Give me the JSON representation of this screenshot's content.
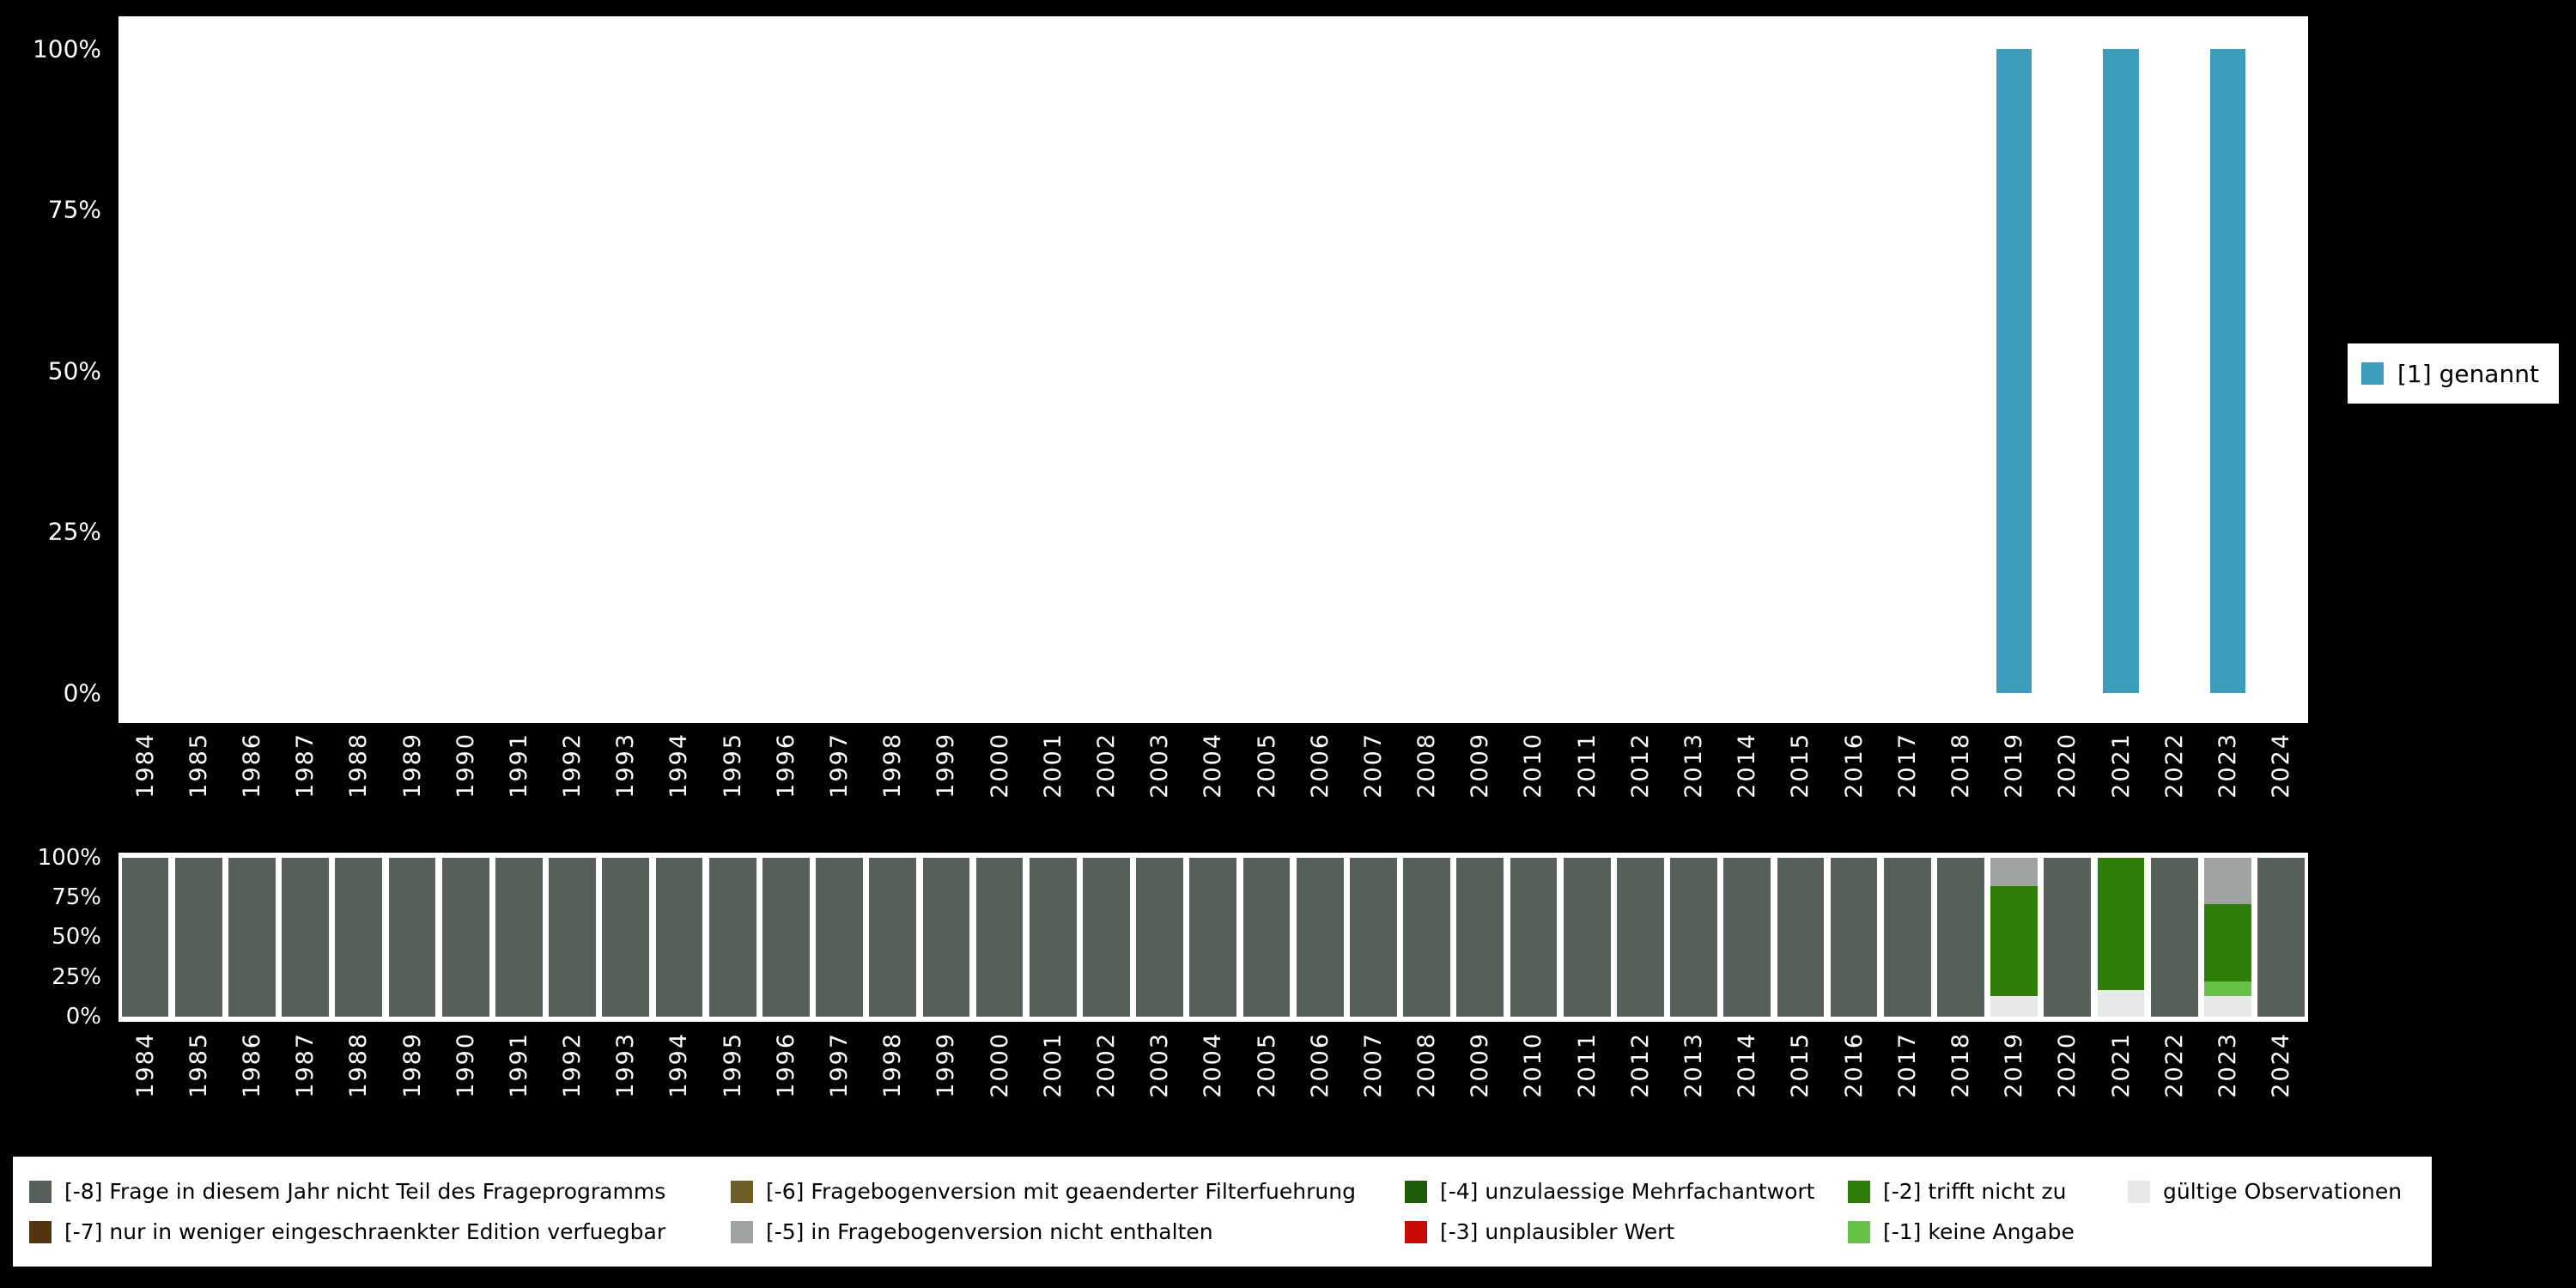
{
  "style": {
    "page_bg": "#000000",
    "plot_bg": "#ffffff",
    "axis_text_color": "#ffffff"
  },
  "chart_data": [
    {
      "type": "bar",
      "title": "",
      "categories": [
        "1984",
        "1985",
        "1986",
        "1987",
        "1988",
        "1989",
        "1990",
        "1991",
        "1992",
        "1993",
        "1994",
        "1995",
        "1996",
        "1997",
        "1998",
        "1999",
        "2000",
        "2001",
        "2002",
        "2003",
        "2004",
        "2005",
        "2006",
        "2007",
        "2008",
        "2009",
        "2010",
        "2011",
        "2012",
        "2013",
        "2014",
        "2015",
        "2016",
        "2017",
        "2018",
        "2019",
        "2020",
        "2021",
        "2022",
        "2023",
        "2024"
      ],
      "series": [
        {
          "name": "[1] genannt",
          "color": "#3d9dbc",
          "values": [
            0,
            0,
            0,
            0,
            0,
            0,
            0,
            0,
            0,
            0,
            0,
            0,
            0,
            0,
            0,
            0,
            0,
            0,
            0,
            0,
            0,
            0,
            0,
            0,
            0,
            0,
            0,
            0,
            0,
            0,
            0,
            0,
            0,
            0,
            0,
            100,
            0,
            100,
            0,
            100,
            0
          ]
        }
      ],
      "ylim": [
        0,
        100
      ],
      "yticks": [
        "100%",
        "75%",
        "50%",
        "25%",
        "0%"
      ],
      "grid": false,
      "legend": {
        "position": "right",
        "entries": [
          {
            "label": "[1] genannt",
            "color": "#3d9dbc"
          }
        ]
      }
    },
    {
      "type": "stacked-bar",
      "title": "",
      "categories": [
        "1984",
        "1985",
        "1986",
        "1987",
        "1988",
        "1989",
        "1990",
        "1991",
        "1992",
        "1993",
        "1994",
        "1995",
        "1996",
        "1997",
        "1998",
        "1999",
        "2000",
        "2001",
        "2002",
        "2003",
        "2004",
        "2005",
        "2006",
        "2007",
        "2008",
        "2009",
        "2010",
        "2011",
        "2012",
        "2013",
        "2014",
        "2015",
        "2016",
        "2017",
        "2018",
        "2019",
        "2020",
        "2021",
        "2022",
        "2023",
        "2024"
      ],
      "ylim": [
        0,
        100
      ],
      "yticks": [
        "100%",
        "75%",
        "50%",
        "25%",
        "0%"
      ],
      "grid": false,
      "colors": {
        "-8": "#565f58",
        "-7": "#53320f",
        "-6": "#6d5e26",
        "-5": "#9ea3a1",
        "-4": "#1f5c08",
        "-3": "#c70b05",
        "-2": "#2e7d06",
        "-1": "#64c244",
        "valid": "#e6e9e7"
      },
      "stacks": {
        "default": [
          {
            "code": "-8",
            "pct": 100
          }
        ],
        "2019": [
          {
            "code": "valid",
            "pct": 13
          },
          {
            "code": "-2",
            "pct": 69
          },
          {
            "code": "-5",
            "pct": 18
          }
        ],
        "2021": [
          {
            "code": "valid",
            "pct": 17
          },
          {
            "code": "-2",
            "pct": 83
          }
        ],
        "2023": [
          {
            "code": "valid",
            "pct": 13
          },
          {
            "code": "-1",
            "pct": 9
          },
          {
            "code": "-2",
            "pct": 49
          },
          {
            "code": "-5",
            "pct": 29
          }
        ]
      }
    }
  ],
  "legend_top": {
    "label": "[1] genannt",
    "color": "#3d9dbc"
  },
  "legend_bottom": {
    "row1": [
      {
        "code": "-8",
        "label": "[-8] Frage in diesem Jahr nicht Teil des Frageprogramms"
      },
      {
        "code": "-6",
        "label": "[-6] Fragebogenversion mit geaenderter Filterfuehrung"
      },
      {
        "code": "-4",
        "label": "[-4] unzulaessige Mehrfachantwort"
      },
      {
        "code": "-2",
        "label": "[-2] trifft nicht zu"
      },
      {
        "code": "valid",
        "label": "gültige Observationen"
      }
    ],
    "row2": [
      {
        "code": "-7",
        "label": "[-7] nur in weniger eingeschraenkter Edition verfuegbar"
      },
      {
        "code": "-5",
        "label": "[-5] in Fragebogenversion nicht enthalten"
      },
      {
        "code": "-3",
        "label": "[-3] unplausibler Wert"
      },
      {
        "code": "-1",
        "label": "[-1] keine Angabe"
      }
    ]
  }
}
